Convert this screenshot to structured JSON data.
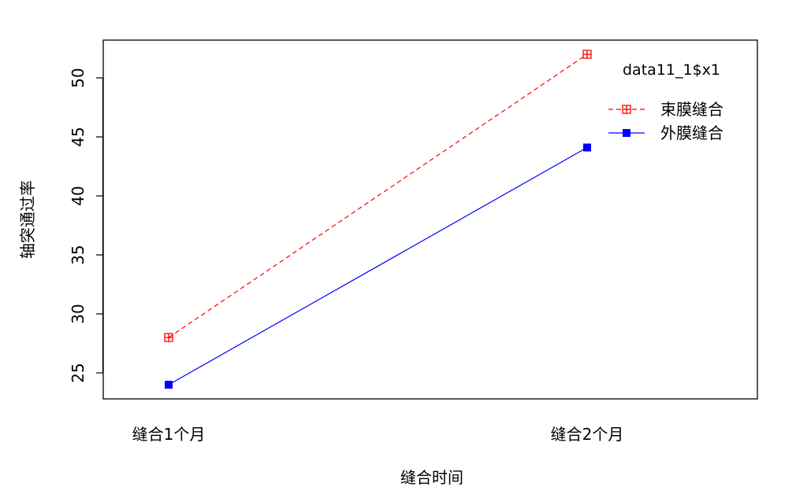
{
  "chart_data": {
    "type": "line",
    "title": "",
    "xlabel": "缝合时间",
    "ylabel": "轴突通过率",
    "categories": [
      "缝合1个月",
      "缝合2个月"
    ],
    "ylim": [
      22.8,
      53.2
    ],
    "yticks": [
      25,
      30,
      35,
      40,
      45,
      50
    ],
    "grid": false,
    "legend": {
      "title": "data11_1$x1",
      "placement": "top-right"
    },
    "series": [
      {
        "name": "束膜缝合",
        "values": [
          28,
          52
        ],
        "color": "#ff0000",
        "line_style": "dashed",
        "marker": "square-plus-open"
      },
      {
        "name": "外膜缝合",
        "values": [
          24,
          44.1
        ],
        "color": "#0000ff",
        "line_style": "solid",
        "marker": "square-filled"
      }
    ]
  }
}
